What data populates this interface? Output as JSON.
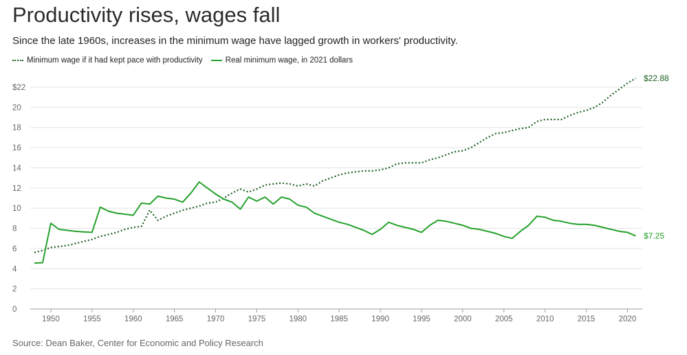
{
  "chart_data": {
    "type": "line",
    "title": "Productivity rises, wages fall",
    "subtitle": "Since the late 1960s, increases in the minimum wage have lagged growth in workers' productivity.",
    "source": "Source: Dean Baker, Center for Economic and Policy Research",
    "xlim": [
      1947.5,
      2021.8
    ],
    "ylim": [
      0,
      22
    ],
    "grid": true,
    "legend_placement": "top-left",
    "x_ticks": [
      1950,
      1955,
      1960,
      1965,
      1970,
      1975,
      1980,
      1985,
      1990,
      1995,
      2000,
      2005,
      2010,
      2015,
      2020
    ],
    "x_tick_labels": [
      "1950",
      "1955",
      "1960",
      "1965",
      "1970",
      "1975",
      "1980",
      "1985",
      "1990",
      "1995",
      "2000",
      "2005",
      "2010",
      "2015",
      "2020"
    ],
    "y_ticks": [
      0,
      2,
      4,
      6,
      8,
      10,
      12,
      14,
      16,
      18,
      20,
      22
    ],
    "y_tick_labels": [
      "0",
      "2",
      "4",
      "6",
      "8",
      "10",
      "12",
      "14",
      "16",
      "18",
      "20",
      "$22"
    ],
    "series": [
      {
        "name": "Minimum wage if it had kept pace with productivity",
        "style": "dotted",
        "color": "#1a5e20",
        "end_label": "$22.88",
        "points": [
          [
            1948,
            5.6
          ],
          [
            1949,
            5.8
          ],
          [
            1950,
            6.1
          ],
          [
            1951,
            6.2
          ],
          [
            1952,
            6.3
          ],
          [
            1953,
            6.5
          ],
          [
            1954,
            6.7
          ],
          [
            1955,
            6.9
          ],
          [
            1956,
            7.2
          ],
          [
            1957,
            7.4
          ],
          [
            1958,
            7.6
          ],
          [
            1959,
            7.9
          ],
          [
            1960,
            8.1
          ],
          [
            1961,
            8.2
          ],
          [
            1962,
            9.8
          ],
          [
            1963,
            8.8
          ],
          [
            1964,
            9.2
          ],
          [
            1965,
            9.5
          ],
          [
            1966,
            9.8
          ],
          [
            1967,
            10.0
          ],
          [
            1968,
            10.2
          ],
          [
            1969,
            10.5
          ],
          [
            1970,
            10.6
          ],
          [
            1971,
            11.0
          ],
          [
            1972,
            11.5
          ],
          [
            1973,
            11.9
          ],
          [
            1974,
            11.6
          ],
          [
            1975,
            11.9
          ],
          [
            1976,
            12.3
          ],
          [
            1977,
            12.4
          ],
          [
            1978,
            12.5
          ],
          [
            1979,
            12.4
          ],
          [
            1980,
            12.2
          ],
          [
            1981,
            12.4
          ],
          [
            1982,
            12.2
          ],
          [
            1983,
            12.7
          ],
          [
            1984,
            13.0
          ],
          [
            1985,
            13.3
          ],
          [
            1986,
            13.5
          ],
          [
            1987,
            13.6
          ],
          [
            1988,
            13.7
          ],
          [
            1989,
            13.7
          ],
          [
            1990,
            13.8
          ],
          [
            1991,
            14.0
          ],
          [
            1992,
            14.4
          ],
          [
            1993,
            14.5
          ],
          [
            1994,
            14.5
          ],
          [
            1995,
            14.5
          ],
          [
            1996,
            14.8
          ],
          [
            1997,
            15.0
          ],
          [
            1998,
            15.3
          ],
          [
            1999,
            15.6
          ],
          [
            2000,
            15.7
          ],
          [
            2001,
            16.0
          ],
          [
            2002,
            16.5
          ],
          [
            2003,
            17.0
          ],
          [
            2004,
            17.4
          ],
          [
            2005,
            17.5
          ],
          [
            2006,
            17.7
          ],
          [
            2007,
            17.9
          ],
          [
            2008,
            18.0
          ],
          [
            2009,
            18.6
          ],
          [
            2010,
            18.8
          ],
          [
            2011,
            18.8
          ],
          [
            2012,
            18.8
          ],
          [
            2013,
            19.2
          ],
          [
            2014,
            19.5
          ],
          [
            2015,
            19.7
          ],
          [
            2016,
            20.0
          ],
          [
            2017,
            20.5
          ],
          [
            2018,
            21.2
          ],
          [
            2019,
            21.8
          ],
          [
            2020,
            22.4
          ],
          [
            2021,
            22.88
          ]
        ]
      },
      {
        "name": "Real minimum wage, in 2021 dollars",
        "style": "solid",
        "color": "#23a12a",
        "end_label": "$7.25",
        "points": [
          [
            1948,
            4.55
          ],
          [
            1949,
            4.6
          ],
          [
            1950,
            8.5
          ],
          [
            1951,
            7.9
          ],
          [
            1952,
            7.8
          ],
          [
            1953,
            7.7
          ],
          [
            1954,
            7.65
          ],
          [
            1955,
            7.6
          ],
          [
            1956,
            10.1
          ],
          [
            1957,
            9.7
          ],
          [
            1958,
            9.5
          ],
          [
            1959,
            9.4
          ],
          [
            1960,
            9.3
          ],
          [
            1961,
            10.5
          ],
          [
            1962,
            10.4
          ],
          [
            1963,
            11.2
          ],
          [
            1964,
            11.0
          ],
          [
            1965,
            10.9
          ],
          [
            1966,
            10.6
          ],
          [
            1967,
            11.5
          ],
          [
            1968,
            12.6
          ],
          [
            1969,
            12.0
          ],
          [
            1970,
            11.4
          ],
          [
            1971,
            10.9
          ],
          [
            1972,
            10.6
          ],
          [
            1973,
            9.9
          ],
          [
            1974,
            11.1
          ],
          [
            1975,
            10.7
          ],
          [
            1976,
            11.1
          ],
          [
            1977,
            10.4
          ],
          [
            1978,
            11.1
          ],
          [
            1979,
            10.9
          ],
          [
            1980,
            10.3
          ],
          [
            1981,
            10.1
          ],
          [
            1982,
            9.5
          ],
          [
            1983,
            9.2
          ],
          [
            1984,
            8.9
          ],
          [
            1985,
            8.6
          ],
          [
            1986,
            8.4
          ],
          [
            1987,
            8.1
          ],
          [
            1988,
            7.8
          ],
          [
            1989,
            7.4
          ],
          [
            1990,
            7.9
          ],
          [
            1991,
            8.6
          ],
          [
            1992,
            8.3
          ],
          [
            1993,
            8.1
          ],
          [
            1994,
            7.9
          ],
          [
            1995,
            7.6
          ],
          [
            1996,
            8.3
          ],
          [
            1997,
            8.8
          ],
          [
            1998,
            8.7
          ],
          [
            1999,
            8.5
          ],
          [
            2000,
            8.3
          ],
          [
            2001,
            8.0
          ],
          [
            2002,
            7.9
          ],
          [
            2003,
            7.7
          ],
          [
            2004,
            7.5
          ],
          [
            2005,
            7.2
          ],
          [
            2006,
            7.0
          ],
          [
            2007,
            7.7
          ],
          [
            2008,
            8.3
          ],
          [
            2009,
            9.2
          ],
          [
            2010,
            9.1
          ],
          [
            2011,
            8.8
          ],
          [
            2012,
            8.7
          ],
          [
            2013,
            8.5
          ],
          [
            2014,
            8.4
          ],
          [
            2015,
            8.4
          ],
          [
            2016,
            8.3
          ],
          [
            2017,
            8.1
          ],
          [
            2018,
            7.9
          ],
          [
            2019,
            7.7
          ],
          [
            2020,
            7.6
          ],
          [
            2021,
            7.25
          ]
        ]
      }
    ]
  }
}
